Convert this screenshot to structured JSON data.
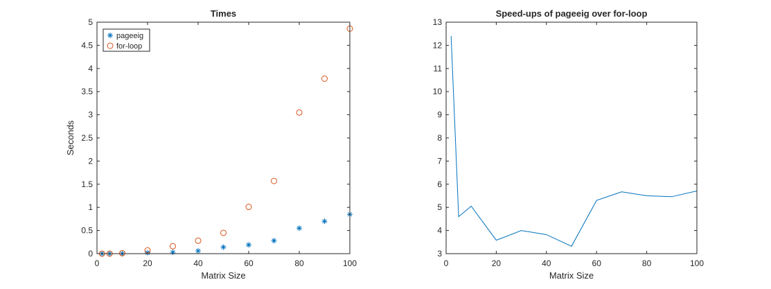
{
  "chart_data": [
    {
      "type": "scatter",
      "title": "Times",
      "xlabel": "Matrix Size",
      "ylabel": "Seconds",
      "xlim": [
        0,
        100
      ],
      "ylim": [
        0,
        5
      ],
      "xticks": [
        0,
        20,
        40,
        60,
        80,
        100
      ],
      "yticks": [
        0,
        0.5,
        1,
        1.5,
        2,
        2.5,
        3,
        3.5,
        4,
        4.5,
        5
      ],
      "xtick_labels": [
        "0",
        "20",
        "40",
        "60",
        "80",
        "100"
      ],
      "ytick_labels": [
        "0",
        "0.5",
        "1",
        "1.5",
        "2",
        "2.5",
        "3",
        "3.5",
        "4",
        "4.5",
        "5"
      ],
      "grid": false,
      "legend_position": "top-left",
      "x": [
        2,
        5,
        10,
        20,
        30,
        40,
        50,
        60,
        70,
        80,
        90,
        100
      ],
      "series": [
        {
          "name": "pageeig",
          "marker": "asterisk",
          "color": "#0072BD",
          "values": [
            0.0,
            0.0,
            0.0,
            0.02,
            0.03,
            0.06,
            0.14,
            0.19,
            0.28,
            0.55,
            0.7,
            0.85
          ]
        },
        {
          "name": "for-loop",
          "marker": "circle",
          "color": "#D95319",
          "values": [
            0.0,
            0.0,
            0.01,
            0.07,
            0.16,
            0.28,
            0.45,
            1.01,
            1.57,
            3.05,
            3.78,
            4.86
          ]
        }
      ]
    },
    {
      "type": "line",
      "title": "Speed-ups of pageeig over for-loop",
      "xlabel": "Matrix Size",
      "ylabel": "",
      "xlim": [
        0,
        100
      ],
      "ylim": [
        3,
        13
      ],
      "xticks": [
        0,
        20,
        40,
        60,
        80,
        100
      ],
      "yticks": [
        3,
        4,
        5,
        6,
        7,
        8,
        9,
        10,
        11,
        12,
        13
      ],
      "xtick_labels": [
        "0",
        "20",
        "40",
        "60",
        "80",
        "100"
      ],
      "ytick_labels": [
        "3",
        "4",
        "5",
        "6",
        "7",
        "8",
        "9",
        "10",
        "11",
        "12",
        "13"
      ],
      "grid": false,
      "x": [
        2,
        5,
        10,
        20,
        30,
        40,
        50,
        60,
        70,
        80,
        90,
        100
      ],
      "series": [
        {
          "color": "#0072BD",
          "values": [
            12.4,
            4.6,
            5.05,
            3.58,
            4.0,
            3.82,
            3.32,
            5.3,
            5.67,
            5.5,
            5.46,
            5.71
          ]
        }
      ]
    }
  ]
}
